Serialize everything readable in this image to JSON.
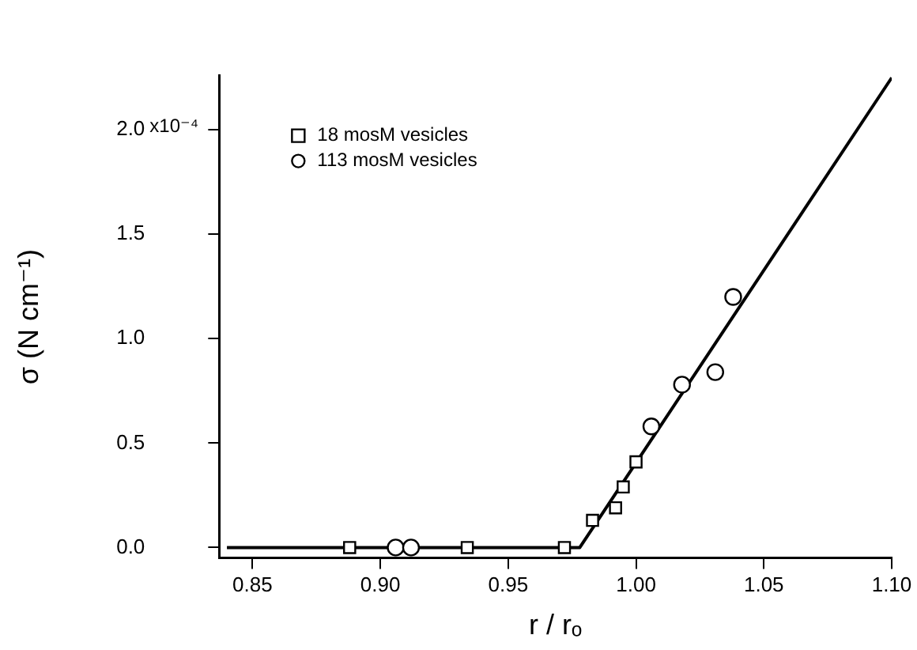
{
  "chart_data": {
    "type": "scatter",
    "xlabel": "r / rₒ",
    "ylabel": "σ (N cm⁻¹)",
    "xlim": [
      0.837,
      1.1
    ],
    "xticks": [
      {
        "value": 0.85,
        "label": "0.85"
      },
      {
        "value": 0.9,
        "label": "0.90"
      },
      {
        "value": 0.95,
        "label": "0.95"
      },
      {
        "value": 1.0,
        "label": "1.00"
      },
      {
        "value": 1.05,
        "label": "1.05"
      },
      {
        "value": 1.1,
        "label": "1.10"
      }
    ],
    "ylim": [
      -0.05,
      2.26
    ],
    "yticks": [
      {
        "value": 0,
        "label": "0.0"
      },
      {
        "value": 0.5,
        "label": "0.5"
      },
      {
        "value": 1.0,
        "label": "1.0"
      },
      {
        "value": 1.5,
        "label": "1.5"
      },
      {
        "value": 2.0,
        "label": "2.0"
      }
    ],
    "annotations": [
      "x10⁻⁴"
    ],
    "grid": false,
    "legend": "top left",
    "series": [
      {
        "name": "18 mosM vesicles",
        "marker": "square",
        "color": "#000000",
        "x": [
          0.888,
          0.934,
          0.972,
          0.983,
          0.992,
          0.995,
          1.0
        ],
        "values": [
          0,
          0,
          0,
          0.13,
          0.19,
          0.29,
          0.41
        ]
      },
      {
        "name": "113 mosM vesicles",
        "marker": "circle",
        "color": "#000000",
        "x": [
          0.906,
          0.912,
          1.006,
          1.018,
          1.031,
          1.038
        ],
        "values": [
          0,
          0,
          0.58,
          0.78,
          0.84,
          1.2
        ]
      },
      {
        "type": "line",
        "marker": "none",
        "color": "#000000",
        "x": [
          0.84,
          0.978,
          1.1
        ],
        "values": [
          0,
          0,
          2.25
        ]
      }
    ]
  }
}
